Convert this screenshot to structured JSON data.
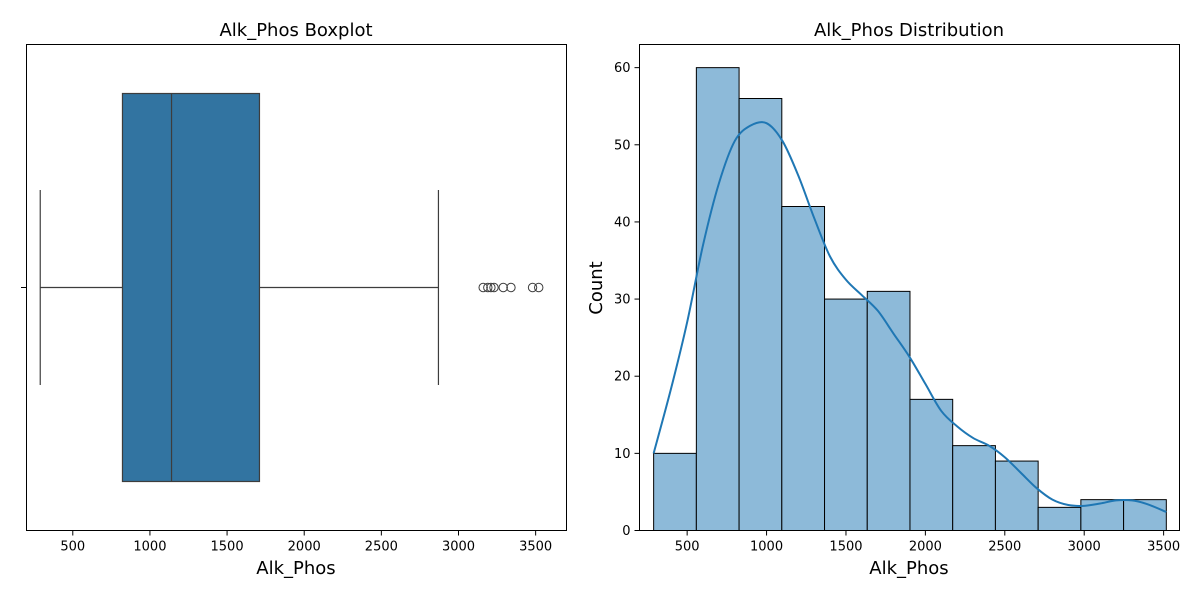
{
  "chart_data": [
    {
      "type": "boxplot",
      "title": "Alk_Phos Boxplot",
      "xlabel": "Alk_Phos",
      "ylabel": "",
      "xlim": [
        200,
        3700
      ],
      "xticks": [
        500,
        1000,
        1500,
        2000,
        2500,
        3000,
        3500
      ],
      "grid": false,
      "box": {
        "whisker_low": 289,
        "q1": 822,
        "median": 1140,
        "q3": 1710,
        "whisker_high": 2870,
        "fliers": [
          3160,
          3190,
          3210,
          3230,
          3290,
          3340,
          3480,
          3520
        ]
      },
      "colors": {
        "box": "#3274a1",
        "line": "#3d3d3d"
      }
    },
    {
      "type": "histogram",
      "title": "Alk_Phos Distribution",
      "xlabel": "Alk_Phos",
      "ylabel": "Count",
      "xlim": [
        200,
        3600
      ],
      "ylim": [
        0,
        63
      ],
      "xticks": [
        500,
        1000,
        1500,
        2000,
        2500,
        3000,
        3500
      ],
      "yticks": [
        0,
        10,
        20,
        30,
        40,
        50,
        60
      ],
      "grid": false,
      "bin_edges": [
        289,
        558,
        827,
        1096,
        1365,
        1634,
        1903,
        2172,
        2441,
        2710,
        2979,
        3248,
        3517
      ],
      "counts": [
        10,
        60,
        56,
        42,
        30,
        31,
        17,
        11,
        9,
        3,
        4,
        4
      ],
      "kde": {
        "x": [
          289,
          400,
          500,
          600,
          700,
          800,
          900,
          1000,
          1100,
          1200,
          1300,
          1400,
          1500,
          1600,
          1700,
          1800,
          1900,
          2000,
          2100,
          2200,
          2300,
          2400,
          2500,
          2600,
          2700,
          2800,
          2900,
          3000,
          3100,
          3200,
          3300,
          3400,
          3517
        ],
        "y": [
          10,
          18.5,
          27,
          37,
          45,
          50.5,
          52.5,
          52.8,
          50.5,
          46,
          40.5,
          35.5,
          32.5,
          30.5,
          28.5,
          25.5,
          22.5,
          19,
          15.5,
          13.5,
          12,
          11,
          9.5,
          7.5,
          5.5,
          4,
          3.3,
          3.2,
          3.5,
          3.9,
          3.9,
          3.4,
          2.4
        ]
      },
      "colors": {
        "bar": "#8dbad9",
        "edge": "#000000",
        "kde": "#1f77b4"
      }
    }
  ]
}
